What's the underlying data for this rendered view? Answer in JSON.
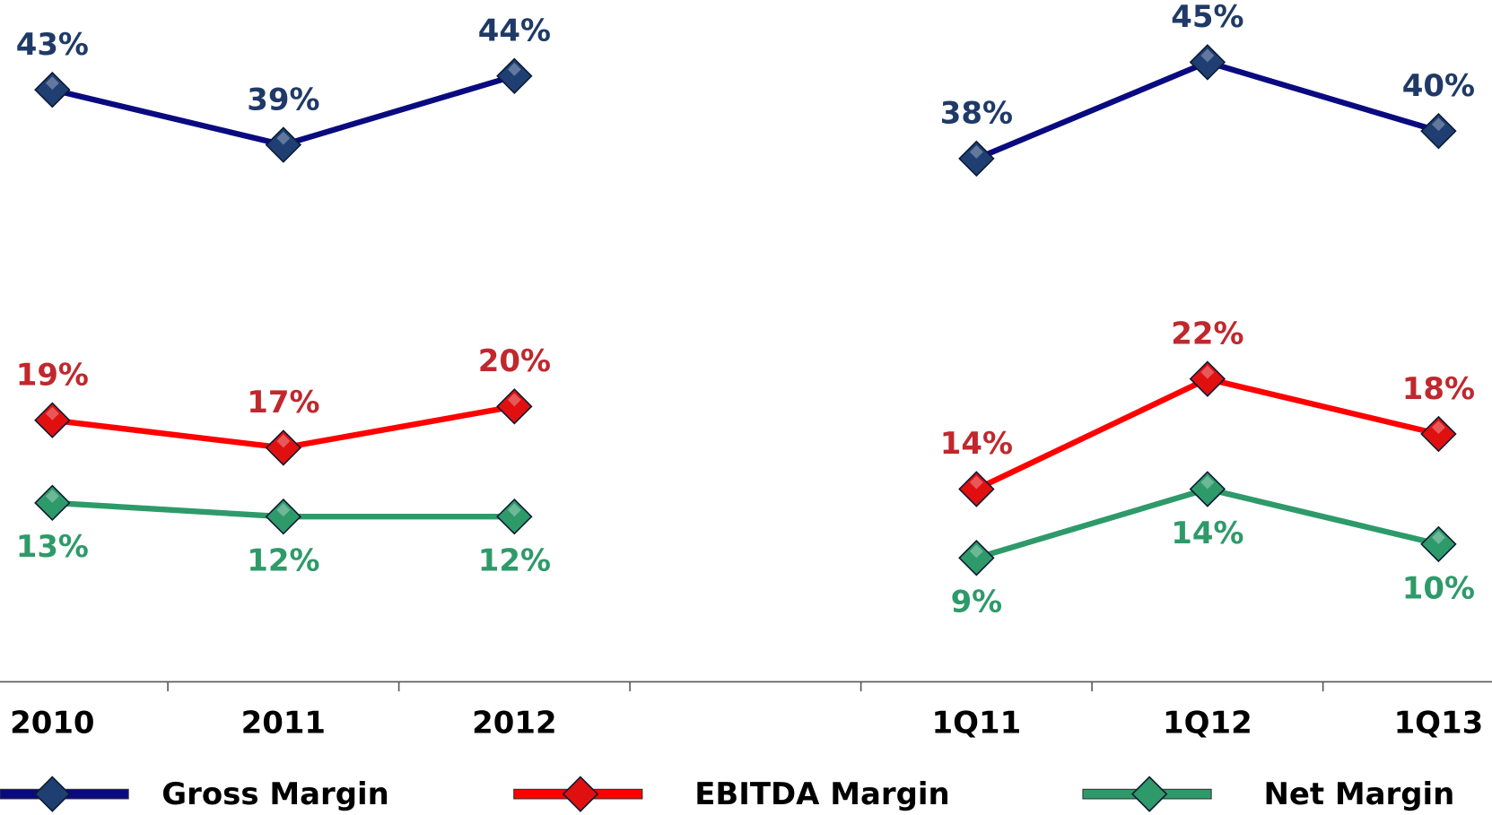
{
  "chart_data": {
    "type": "line",
    "categories": [
      "2010",
      "2011",
      "2012",
      null,
      "1Q11",
      "1Q12",
      "1Q13"
    ],
    "ylim": [
      0,
      50
    ],
    "series": [
      {
        "name": "Gross Margin",
        "color": "#0a0a80",
        "marker_color": "#1f3f73",
        "label_color": "#1f3a66",
        "values": [
          43,
          39,
          44,
          null,
          38,
          45,
          40
        ],
        "value_labels": [
          "43%",
          "39%",
          "44%",
          null,
          "38%",
          "45%",
          "40%"
        ]
      },
      {
        "name": "EBITDA Margin",
        "color": "#ff0000",
        "marker_color": "#e01010",
        "label_color": "#c0282d",
        "values": [
          19,
          17,
          20,
          null,
          14,
          22,
          18
        ],
        "value_labels": [
          "19%",
          "17%",
          "20%",
          null,
          "14%",
          "22%",
          "18%"
        ]
      },
      {
        "name": "Net Margin",
        "color": "#2e9a6a",
        "marker_color": "#2e9a6a",
        "label_color": "#2e9a6a",
        "values": [
          13,
          12,
          12,
          null,
          9,
          14,
          10
        ],
        "value_labels": [
          "13%",
          "12%",
          "12%",
          null,
          "9%",
          "14%",
          "10%"
        ]
      }
    ]
  }
}
